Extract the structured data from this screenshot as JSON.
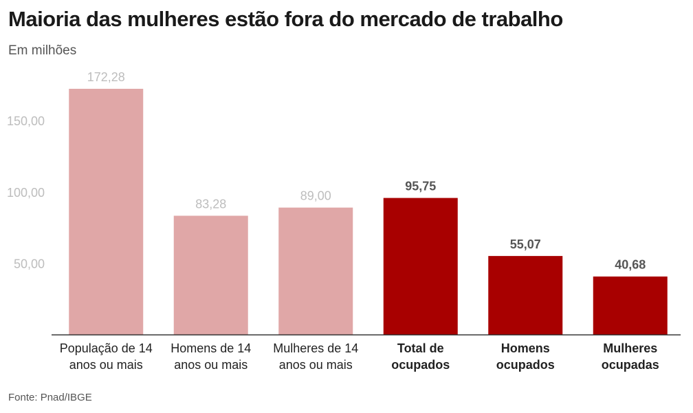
{
  "header": {
    "title": "Maioria das mulheres estão fora do mercado de trabalho",
    "subtitle": "Em milhões"
  },
  "footer": {
    "source": "Fonte: Pnad/IBGE"
  },
  "colors": {
    "light_bar": "#e0a7a7",
    "dark_bar": "#a80000",
    "light_label": "#bdbdbd",
    "dark_label": "#555555",
    "tick_label": "#bdbdbd",
    "axis": "#333333",
    "category_label": "#222222"
  },
  "chart_data": {
    "type": "bar",
    "title": "Maioria das mulheres estão fora do mercado de trabalho",
    "subtitle": "Em milhões",
    "xlabel": "",
    "ylabel": "",
    "ylim": [
      0,
      172.28
    ],
    "grid": false,
    "legend": "none",
    "yticks": [
      50,
      100,
      150
    ],
    "ytick_labels": [
      "50,00",
      "100,00",
      "150,00"
    ],
    "categories": [
      [
        "População de 14",
        "anos ou mais"
      ],
      [
        "Homens de 14",
        "anos ou mais"
      ],
      [
        "Mulheres de 14",
        "anos ou mais"
      ],
      [
        "Total de",
        "ocupados"
      ],
      [
        "Homens",
        "ocupados"
      ],
      [
        "Mulheres",
        "ocupadas"
      ]
    ],
    "values": [
      172.28,
      83.28,
      89.0,
      95.75,
      55.07,
      40.68
    ],
    "value_labels": [
      "172,28",
      "83,28",
      "89,00",
      "95,75",
      "55,07",
      "40,68"
    ],
    "highlighted": [
      false,
      false,
      false,
      true,
      true,
      true
    ]
  }
}
